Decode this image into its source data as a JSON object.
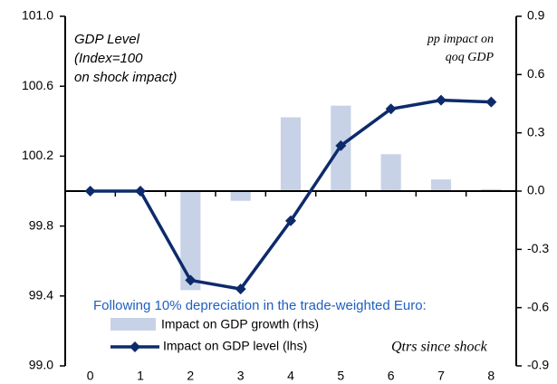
{
  "chart_data": {
    "type": "combo",
    "annotations": {
      "left_note": [
        "GDP Level",
        "(Index=100",
        "on shock impact)"
      ],
      "right_note": [
        "pp impact on",
        "qoq GDP"
      ],
      "legend_title": "Following 10% depreciation in the trade-weighted Euro:",
      "x_note": "Qtrs since shock"
    },
    "categories": [
      "0",
      "1",
      "2",
      "3",
      "4",
      "5",
      "6",
      "7",
      "8"
    ],
    "series": [
      {
        "name": "Impact on GDP growth (rhs)",
        "type": "bar",
        "axis": "y2",
        "color": "#c8d2e6",
        "values": [
          0,
          0,
          -0.51,
          -0.05,
          0.38,
          0.44,
          0.19,
          0.06,
          0.01
        ]
      },
      {
        "name": "Impact on GDP level (lhs)",
        "type": "line",
        "color": "#0d2a6b",
        "values": [
          100.0,
          100.0,
          99.49,
          99.44,
          99.83,
          100.26,
          100.47,
          100.52,
          100.51
        ]
      }
    ],
    "ylim": [
      99.0,
      101.0
    ],
    "yticks": [
      {
        "value": 99,
        "label": "99.0"
      },
      99.4,
      99.8,
      100.2,
      100.6,
      {
        "value": 101,
        "label": "101.0"
      }
    ],
    "y2lim": [
      -0.9,
      0.9
    ],
    "y2ticks": [
      -0.9,
      -0.6,
      -0.3,
      {
        "value": 0,
        "label": "0.0"
      },
      0.3,
      0.6,
      0.9
    ],
    "legend_color": "#1f5fbf"
  }
}
